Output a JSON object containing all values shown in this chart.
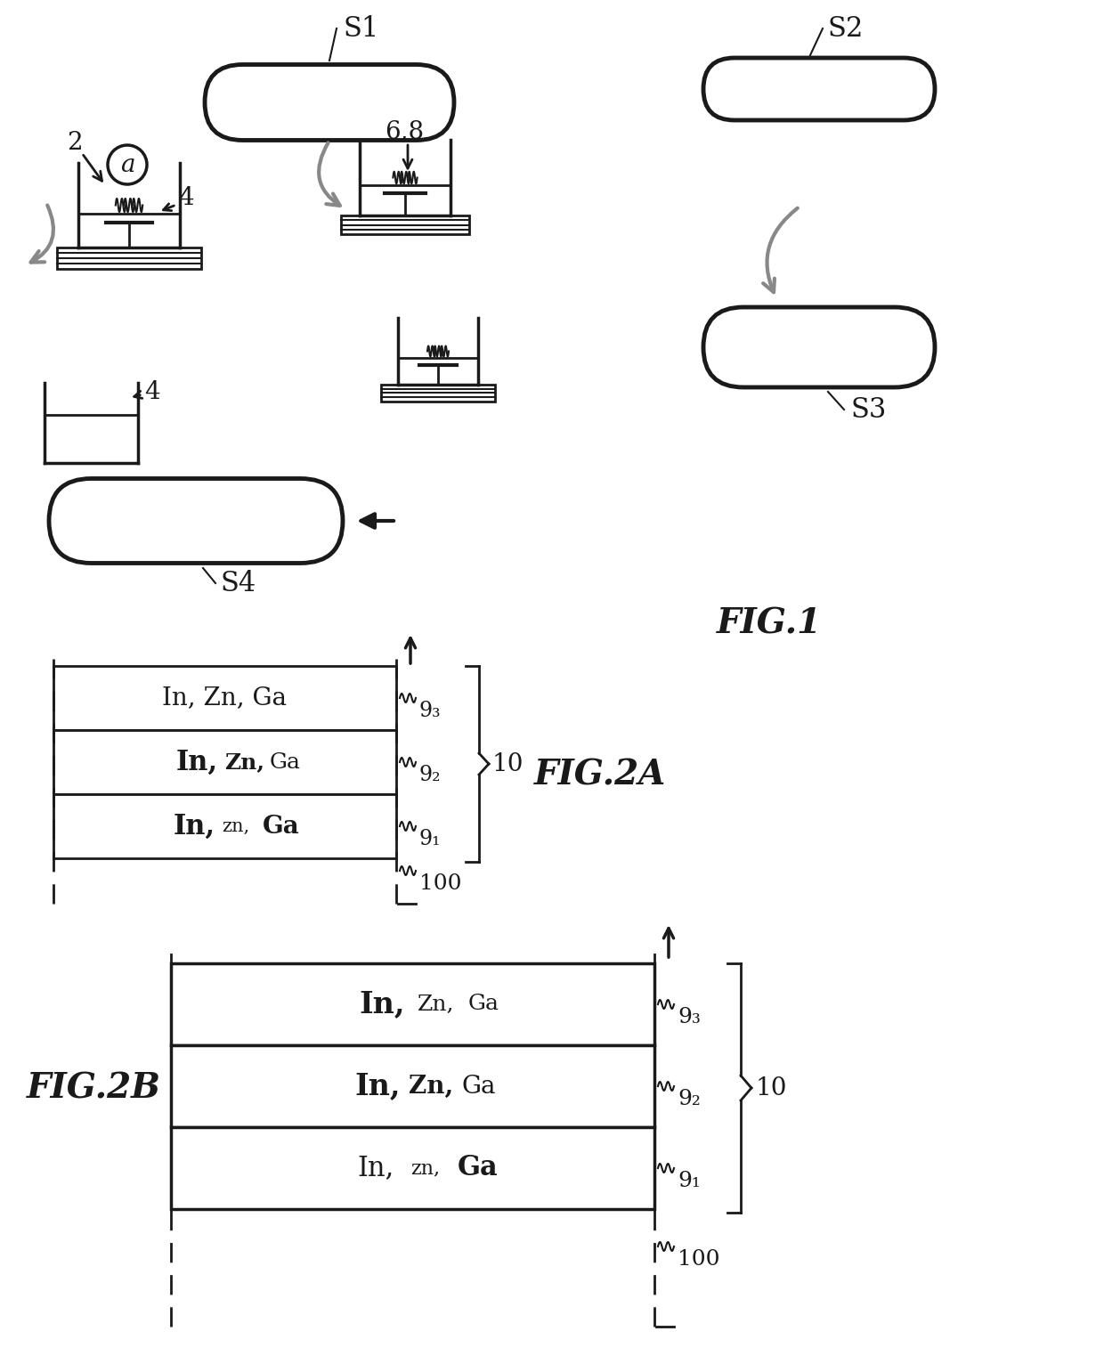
{
  "background_color": "#ffffff",
  "fig_width": 12.4,
  "fig_height": 15.41,
  "fig1_label": "FIG.1",
  "fig2a_label": "FIG.2A",
  "fig2b_label": "FIG.2B",
  "s1_label": "S1",
  "s2_label": "S2",
  "s3_label": "S3",
  "s4_label": "S4",
  "label_a": "a",
  "label_68": "6,8",
  "label_2": "2",
  "label_4": "4",
  "label_4b": "4",
  "label_10a": "10",
  "label_10b": "10",
  "label_100a": "100",
  "label_100b": "100",
  "line_color": "#1a1a1a",
  "gray_arrow_color": "#888888"
}
